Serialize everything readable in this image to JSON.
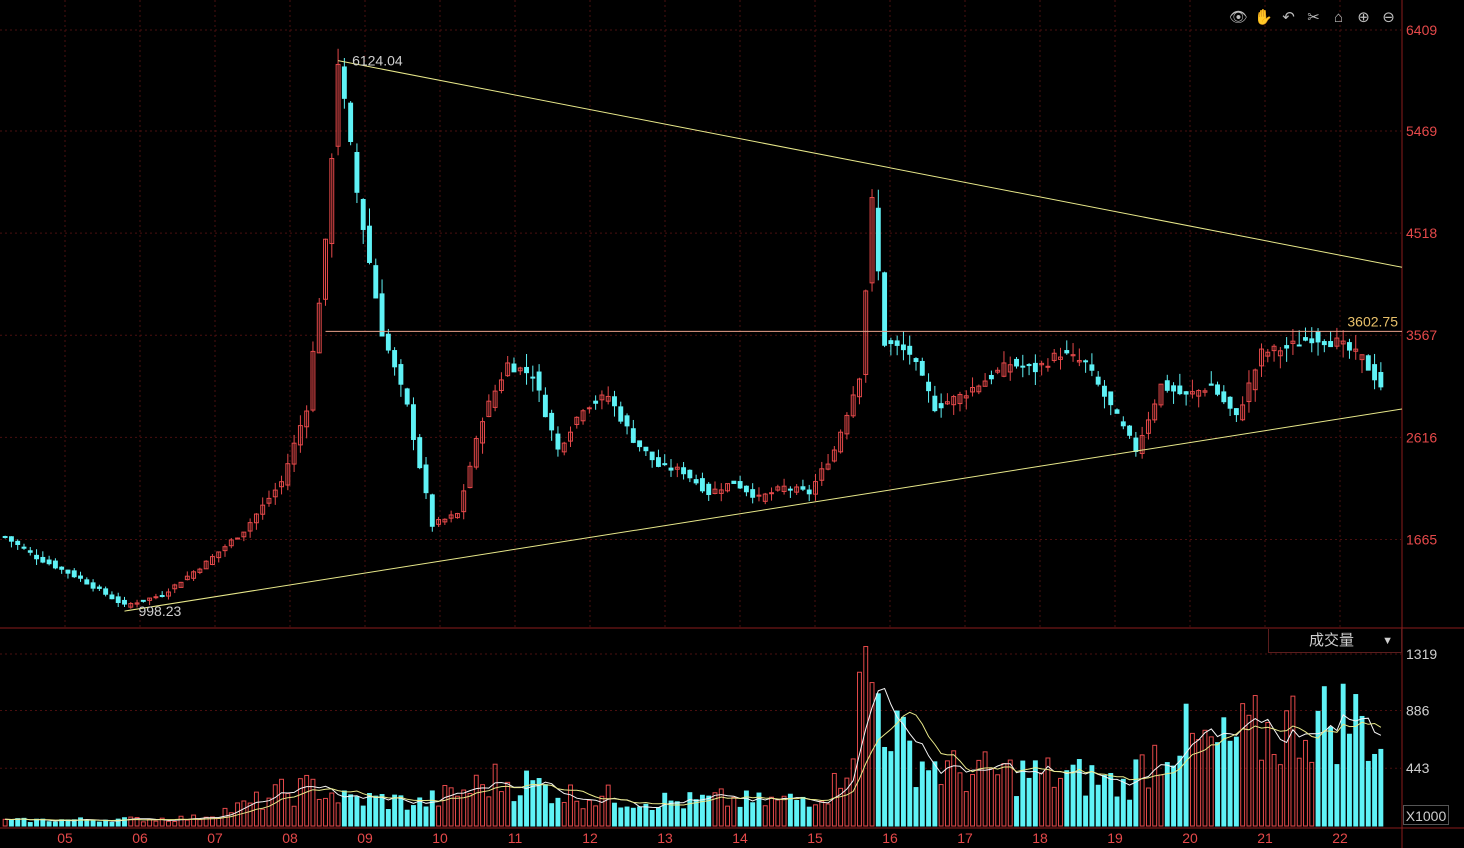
{
  "toolbar": {
    "icons": [
      "eye-icon",
      "hand-icon",
      "undo-icon",
      "scissors-icon",
      "lock-icon",
      "zoom-in-icon",
      "zoom-out-icon"
    ],
    "glyphs": [
      "👁",
      "✋",
      "↶",
      "✂",
      "⌂",
      "⊕",
      "⊖"
    ]
  },
  "volume_panel": {
    "indicator_label": "成交量",
    "dropdown_arrow": "▼",
    "unit_label": "X1000"
  },
  "colors": {
    "up": "#e5494a",
    "down": "#5ff2f6",
    "trend": "#e8e88a",
    "grid": "#4a0f0f",
    "hline": "#e8a08a"
  },
  "chart_data": [
    {
      "type": "candlestick",
      "x_ticks": [
        "05",
        "06",
        "07",
        "08",
        "09",
        "10",
        "11",
        "12",
        "13",
        "14",
        "15",
        "16",
        "17",
        "18",
        "19",
        "20",
        "21",
        "22"
      ],
      "y_ticks": [
        1665,
        2616,
        3567,
        4518,
        5469,
        6409
      ],
      "ylim": [
        850,
        6409
      ],
      "annotations": {
        "max_label": "6124.04",
        "min_label": "998.23",
        "resistance_label": "3602.75"
      },
      "max": 6124.04,
      "min": 998.23,
      "resistance": 3602.75,
      "anchors": [
        [
          0,
          1690
        ],
        [
          5,
          1500
        ],
        [
          12,
          1300
        ],
        [
          19,
          1050
        ],
        [
          25,
          1150
        ],
        [
          32,
          1450
        ],
        [
          38,
          1750
        ],
        [
          44,
          2200
        ],
        [
          48,
          2900
        ],
        [
          51,
          4400
        ],
        [
          53,
          6124
        ],
        [
          56,
          4900
        ],
        [
          60,
          3600
        ],
        [
          64,
          2900
        ],
        [
          68,
          1800
        ],
        [
          72,
          1900
        ],
        [
          76,
          2800
        ],
        [
          80,
          3300
        ],
        [
          84,
          3200
        ],
        [
          88,
          2500
        ],
        [
          92,
          2900
        ],
        [
          96,
          3000
        ],
        [
          100,
          2600
        ],
        [
          104,
          2350
        ],
        [
          108,
          2300
        ],
        [
          112,
          2100
        ],
        [
          116,
          2200
        ],
        [
          120,
          2050
        ],
        [
          124,
          2150
        ],
        [
          128,
          2100
        ],
        [
          132,
          2500
        ],
        [
          136,
          3200
        ],
        [
          138,
          4800
        ],
        [
          140,
          3500
        ],
        [
          144,
          3400
        ],
        [
          148,
          2900
        ],
        [
          152,
          3000
        ],
        [
          156,
          3150
        ],
        [
          160,
          3300
        ],
        [
          164,
          3250
        ],
        [
          168,
          3400
        ],
        [
          172,
          3300
        ],
        [
          176,
          2900
        ],
        [
          180,
          2500
        ],
        [
          184,
          3100
        ],
        [
          188,
          3000
        ],
        [
          192,
          3100
        ],
        [
          196,
          2800
        ],
        [
          200,
          3400
        ],
        [
          204,
          3450
        ],
        [
          208,
          3550
        ],
        [
          212,
          3500
        ],
        [
          216,
          3350
        ],
        [
          219,
          3100
        ]
      ],
      "n": 220
    },
    {
      "type": "bar",
      "name": "成交量",
      "y_ticks": [
        443,
        886,
        1319
      ],
      "ylim": [
        0,
        1319
      ],
      "anchors": [
        [
          0,
          40
        ],
        [
          20,
          50
        ],
        [
          30,
          60
        ],
        [
          38,
          150
        ],
        [
          44,
          250
        ],
        [
          50,
          300
        ],
        [
          54,
          200
        ],
        [
          60,
          200
        ],
        [
          66,
          170
        ],
        [
          72,
          250
        ],
        [
          78,
          350
        ],
        [
          84,
          320
        ],
        [
          90,
          240
        ],
        [
          96,
          220
        ],
        [
          102,
          200
        ],
        [
          108,
          180
        ],
        [
          114,
          200
        ],
        [
          120,
          180
        ],
        [
          126,
          200
        ],
        [
          132,
          300
        ],
        [
          135,
          700
        ],
        [
          137,
          1200
        ],
        [
          139,
          1000
        ],
        [
          141,
          800
        ],
        [
          143,
          600
        ],
        [
          146,
          500
        ],
        [
          150,
          420
        ],
        [
          156,
          400
        ],
        [
          162,
          400
        ],
        [
          168,
          380
        ],
        [
          174,
          360
        ],
        [
          178,
          300
        ],
        [
          182,
          500
        ],
        [
          186,
          700
        ],
        [
          190,
          600
        ],
        [
          194,
          600
        ],
        [
          198,
          700
        ],
        [
          202,
          700
        ],
        [
          206,
          800
        ],
        [
          210,
          800
        ],
        [
          214,
          850
        ],
        [
          218,
          700
        ],
        [
          219,
          550
        ]
      ]
    }
  ]
}
